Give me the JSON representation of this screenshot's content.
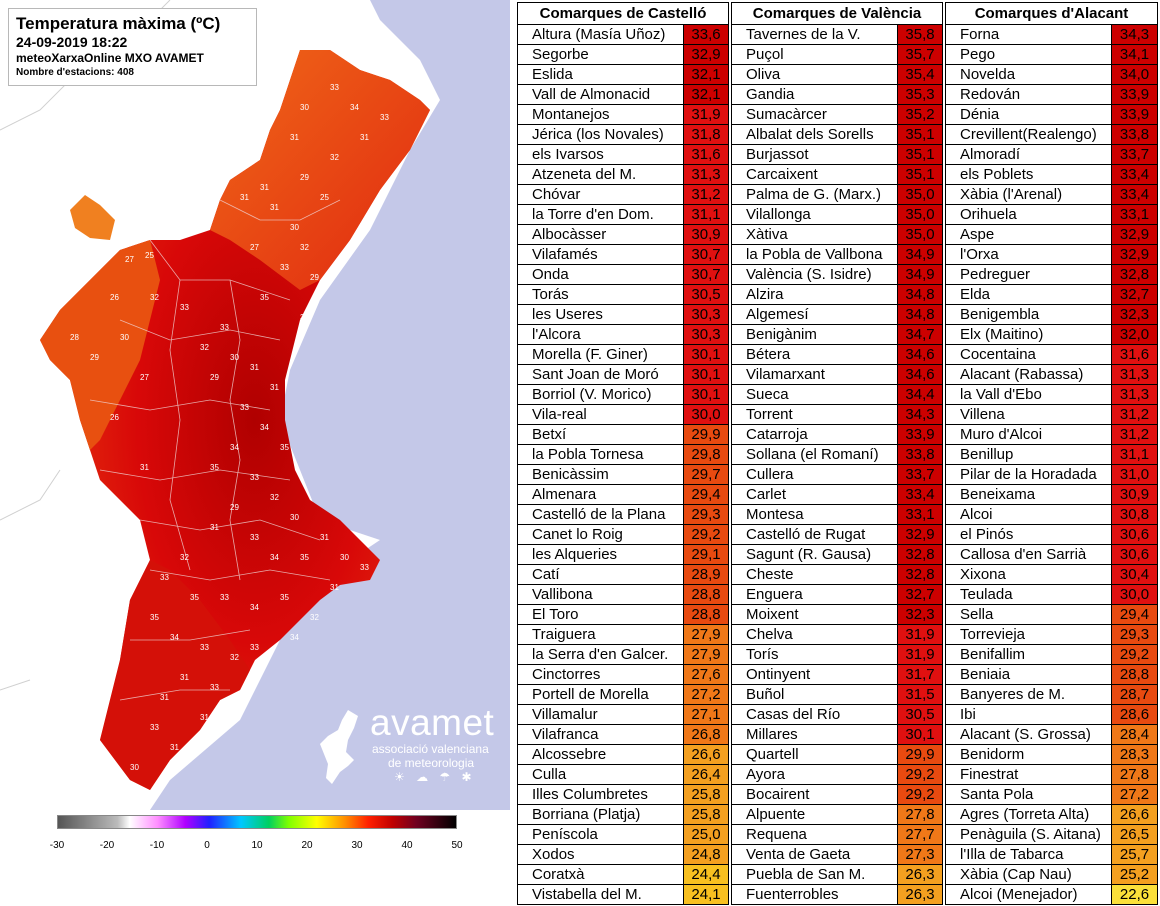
{
  "map": {
    "title": "Temperatura màxima (ºC)",
    "datetime": "24-09-2019 18:22",
    "network": "meteoXarxaOnline MXO AVAMET",
    "stations": "Nombre d'estacions: 408",
    "brand_name": "avamet",
    "brand_sub1": "associació valenciana",
    "brand_sub2": "de meteorologia",
    "brand_icons": "☀ ☁ ☂ ✱",
    "scale_ticks": [
      "-30",
      "-20",
      "-10",
      "0",
      "10",
      "20",
      "30",
      "40",
      "50"
    ],
    "station_labels": [
      "25",
      "27",
      "26",
      "28",
      "27",
      "25",
      "26",
      "31",
      "31",
      "31",
      "30",
      "32",
      "33",
      "35",
      "34",
      "33",
      "32",
      "30",
      "29",
      "31",
      "31",
      "33",
      "34",
      "35",
      "34",
      "35",
      "33",
      "32",
      "30",
      "29",
      "31",
      "33",
      "34",
      "35",
      "31",
      "30",
      "32",
      "33",
      "35",
      "33",
      "34",
      "35",
      "35",
      "34",
      "33",
      "32",
      "31",
      "33",
      "34",
      "33",
      "31",
      "30",
      "31",
      "31",
      "33",
      "34",
      "32",
      "31",
      "33",
      "30",
      "29",
      "28",
      "27",
      "26",
      "32",
      "33",
      "32",
      "31",
      "33",
      "34",
      "33",
      "30",
      "31",
      "32",
      "29",
      "25",
      "25",
      "26",
      "27",
      "29",
      "31"
    ]
  },
  "tables": {
    "castello": {
      "header": "Comarques de Castelló",
      "rows": [
        {
          "name": "Altura (Masía Uñoz)",
          "value": "33,6"
        },
        {
          "name": "Segorbe",
          "value": "32,9"
        },
        {
          "name": "Eslida",
          "value": "32,1"
        },
        {
          "name": "Vall de Almonacid",
          "value": "32,1"
        },
        {
          "name": "Montanejos",
          "value": "31,9"
        },
        {
          "name": "Jérica (los Novales)",
          "value": "31,8"
        },
        {
          "name": "els Ivarsos",
          "value": "31,6"
        },
        {
          "name": "Atzeneta del M.",
          "value": "31,3"
        },
        {
          "name": "Chóvar",
          "value": "31,2"
        },
        {
          "name": "la Torre d'en Dom.",
          "value": "31,1"
        },
        {
          "name": "Albocàsser",
          "value": "30,9"
        },
        {
          "name": "Vilafamés",
          "value": "30,7"
        },
        {
          "name": "Onda",
          "value": "30,7"
        },
        {
          "name": "Torás",
          "value": "30,5"
        },
        {
          "name": "les Useres",
          "value": "30,3"
        },
        {
          "name": "l'Alcora",
          "value": "30,3"
        },
        {
          "name": "Morella (F. Giner)",
          "value": "30,1"
        },
        {
          "name": "Sant Joan de Moró",
          "value": "30,1"
        },
        {
          "name": "Borriol (V. Morico)",
          "value": "30,1"
        },
        {
          "name": "Vila-real",
          "value": "30,0"
        },
        {
          "name": "Betxí",
          "value": "29,9"
        },
        {
          "name": "la Pobla Tornesa",
          "value": "29,8"
        },
        {
          "name": "Benicàssim",
          "value": "29,7"
        },
        {
          "name": "Almenara",
          "value": "29,4"
        },
        {
          "name": "Castelló de la Plana",
          "value": "29,3"
        },
        {
          "name": "Canet lo Roig",
          "value": "29,2"
        },
        {
          "name": "les Alqueries",
          "value": "29,1"
        },
        {
          "name": "Catí",
          "value": "28,9"
        },
        {
          "name": "Vallibona",
          "value": "28,8"
        },
        {
          "name": "El Toro",
          "value": "28,8"
        },
        {
          "name": "Traiguera",
          "value": "27,9"
        },
        {
          "name": "la Serra d'en Galcer.",
          "value": "27,9"
        },
        {
          "name": "Cinctorres",
          "value": "27,6"
        },
        {
          "name": "Portell de Morella",
          "value": "27,2"
        },
        {
          "name": "Villamalur",
          "value": "27,1"
        },
        {
          "name": "Vilafranca",
          "value": "26,8"
        },
        {
          "name": "Alcossebre",
          "value": "26,6"
        },
        {
          "name": "Culla",
          "value": "26,4"
        },
        {
          "name": "Illes Columbretes",
          "value": "25,8"
        },
        {
          "name": "Borriana (Platja)",
          "value": "25,8"
        },
        {
          "name": "Peníscola",
          "value": "25,0"
        },
        {
          "name": "Xodos",
          "value": "24,8"
        },
        {
          "name": "Coratxà",
          "value": "24,4"
        },
        {
          "name": "Vistabella del M.",
          "value": "24,1"
        }
      ]
    },
    "valencia": {
      "header": "Comarques de València",
      "rows": [
        {
          "name": "Tavernes de la V.",
          "value": "35,8"
        },
        {
          "name": "Puçol",
          "value": "35,7"
        },
        {
          "name": "Oliva",
          "value": "35,4"
        },
        {
          "name": "Gandia",
          "value": "35,3"
        },
        {
          "name": "Sumacàrcer",
          "value": "35,2"
        },
        {
          "name": "Albalat dels Sorells",
          "value": "35,1"
        },
        {
          "name": "Burjassot",
          "value": "35,1"
        },
        {
          "name": "Carcaixent",
          "value": "35,1"
        },
        {
          "name": "Palma de G. (Marx.)",
          "value": "35,0"
        },
        {
          "name": "Vilallonga",
          "value": "35,0"
        },
        {
          "name": "Xàtiva",
          "value": "35,0"
        },
        {
          "name": "la Pobla de Vallbona",
          "value": "34,9"
        },
        {
          "name": "València (S. Isidre)",
          "value": "34,9"
        },
        {
          "name": "Alzira",
          "value": "34,8"
        },
        {
          "name": "Algemesí",
          "value": "34,8"
        },
        {
          "name": "Benigànim",
          "value": "34,7"
        },
        {
          "name": "Bétera",
          "value": "34,6"
        },
        {
          "name": "Vilamarxant",
          "value": "34,6"
        },
        {
          "name": "Sueca",
          "value": "34,4"
        },
        {
          "name": "Torrent",
          "value": "34,3"
        },
        {
          "name": "Catarroja",
          "value": "33,9"
        },
        {
          "name": "Sollana (el Romaní)",
          "value": "33,8"
        },
        {
          "name": "Cullera",
          "value": "33,7"
        },
        {
          "name": "Carlet",
          "value": "33,4"
        },
        {
          "name": "Montesa",
          "value": "33,1"
        },
        {
          "name": "Castelló de Rugat",
          "value": "32,9"
        },
        {
          "name": "Sagunt (R. Gausa)",
          "value": "32,8"
        },
        {
          "name": "Cheste",
          "value": "32,8"
        },
        {
          "name": "Enguera",
          "value": "32,7"
        },
        {
          "name": "Moixent",
          "value": "32,3"
        },
        {
          "name": "Chelva",
          "value": "31,9"
        },
        {
          "name": "Torís",
          "value": "31,9"
        },
        {
          "name": "Ontinyent",
          "value": "31,7"
        },
        {
          "name": "Buñol",
          "value": "31,5"
        },
        {
          "name": "Casas del Río",
          "value": "30,5"
        },
        {
          "name": "Millares",
          "value": "30,1"
        },
        {
          "name": "Quartell",
          "value": "29,9"
        },
        {
          "name": "Ayora",
          "value": "29,2"
        },
        {
          "name": "Bocairent",
          "value": "29,2"
        },
        {
          "name": "Alpuente",
          "value": "27,8"
        },
        {
          "name": "Requena",
          "value": "27,7"
        },
        {
          "name": "Venta de Gaeta",
          "value": "27,3"
        },
        {
          "name": "Puebla de San M.",
          "value": "26,3"
        },
        {
          "name": "Fuenterrobles",
          "value": "26,3"
        }
      ]
    },
    "alacant": {
      "header": "Comarques d'Alacant",
      "rows": [
        {
          "name": "Forna",
          "value": "34,3"
        },
        {
          "name": "Pego",
          "value": "34,1"
        },
        {
          "name": "Novelda",
          "value": "34,0"
        },
        {
          "name": "Redován",
          "value": "33,9"
        },
        {
          "name": "Dénia",
          "value": "33,9"
        },
        {
          "name": "Crevillent(Realengo)",
          "value": "33,8"
        },
        {
          "name": "Almoradí",
          "value": "33,7"
        },
        {
          "name": "els Poblets",
          "value": "33,4"
        },
        {
          "name": "Xàbia (l'Arenal)",
          "value": "33,4"
        },
        {
          "name": "Orihuela",
          "value": "33,1"
        },
        {
          "name": "Aspe",
          "value": "32,9"
        },
        {
          "name": "l'Orxa",
          "value": "32,9"
        },
        {
          "name": "Pedreguer",
          "value": "32,8"
        },
        {
          "name": "Elda",
          "value": "32,7"
        },
        {
          "name": "Benigembla",
          "value": "32,3"
        },
        {
          "name": "Elx (Maitino)",
          "value": "32,0"
        },
        {
          "name": "Cocentaina",
          "value": "31,6"
        },
        {
          "name": "Alacant (Rabassa)",
          "value": "31,3"
        },
        {
          "name": "la Vall d'Ebo",
          "value": "31,3"
        },
        {
          "name": "Villena",
          "value": "31,2"
        },
        {
          "name": "Muro d'Alcoi",
          "value": "31,2"
        },
        {
          "name": "Benillup",
          "value": "31,1"
        },
        {
          "name": "Pilar de la Horadada",
          "value": "31,0"
        },
        {
          "name": "Beneixama",
          "value": "30,9"
        },
        {
          "name": "Alcoi",
          "value": "30,8"
        },
        {
          "name": "el Pinós",
          "value": "30,6"
        },
        {
          "name": "Callosa d'en Sarrià",
          "value": "30,6"
        },
        {
          "name": "Xixona",
          "value": "30,4"
        },
        {
          "name": "Teulada",
          "value": "30,0"
        },
        {
          "name": "Sella",
          "value": "29,4"
        },
        {
          "name": "Torrevieja",
          "value": "29,3"
        },
        {
          "name": "Benifallim",
          "value": "29,2"
        },
        {
          "name": "Beniaia",
          "value": "28,8"
        },
        {
          "name": "Banyeres de M.",
          "value": "28,7"
        },
        {
          "name": "Ibi",
          "value": "28,6"
        },
        {
          "name": "Alacant (S. Grossa)",
          "value": "28,4"
        },
        {
          "name": "Benidorm",
          "value": "28,3"
        },
        {
          "name": "Finestrat",
          "value": "27,8"
        },
        {
          "name": "Santa Pola",
          "value": "27,2"
        },
        {
          "name": "Agres (Torreta Alta)",
          "value": "26,6"
        },
        {
          "name": "Penàguila (S. Aitana)",
          "value": "26,5"
        },
        {
          "name": "l'Illa de Tabarca",
          "value": "25,7"
        },
        {
          "name": "Xàbia (Cap Nau)",
          "value": "25,2"
        },
        {
          "name": "Alcoi (Menejador)",
          "value": "22,6"
        }
      ]
    }
  },
  "colors": {
    "sea": "#c4c8e8",
    "land_outside": "#ffffff",
    "val_35": "#b00000",
    "val_33": "#cc0000",
    "val_30": "#e01010",
    "val_29": "#e84a10",
    "val_27": "#f07818",
    "val_25": "#f4a020",
    "val_24": "#f8c020",
    "val_22": "#fbe03a"
  }
}
